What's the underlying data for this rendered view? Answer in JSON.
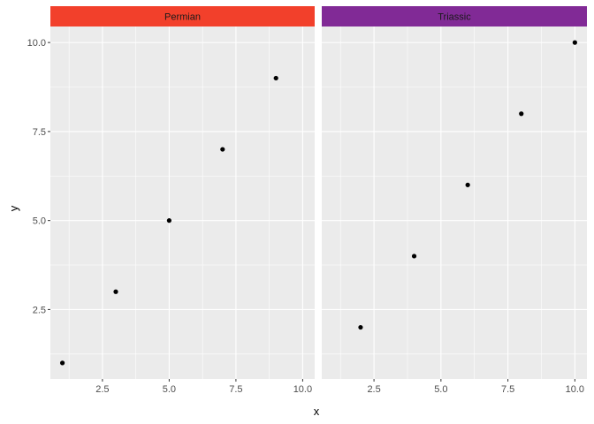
{
  "chart_data": {
    "type": "scatter",
    "facet_by": "period",
    "xlabel": "x",
    "ylabel": "y",
    "xlim": [
      0.55,
      10.45
    ],
    "ylim": [
      0.55,
      10.45
    ],
    "x_breaks": [
      2.5,
      5.0,
      7.5,
      10.0
    ],
    "x_tick_labels": [
      "2.5",
      "5.0",
      "7.5",
      "10.0"
    ],
    "y_breaks": [
      2.5,
      5.0,
      7.5,
      10.0
    ],
    "y_tick_labels": [
      "2.5",
      "5.0",
      "7.5",
      "10.0"
    ],
    "grid": true,
    "panels": [
      {
        "label": "Permian",
        "strip_color": "#F2402B",
        "x": [
          1,
          3,
          5,
          7,
          9
        ],
        "y": [
          1,
          3,
          5,
          7,
          9
        ]
      },
      {
        "label": "Triassic",
        "strip_color": "#812A96",
        "x": [
          2,
          4,
          6,
          8,
          10
        ],
        "y": [
          2,
          4,
          6,
          8,
          10
        ]
      }
    ],
    "point_color": "#000000",
    "panel_background": "#EBEBEB"
  }
}
